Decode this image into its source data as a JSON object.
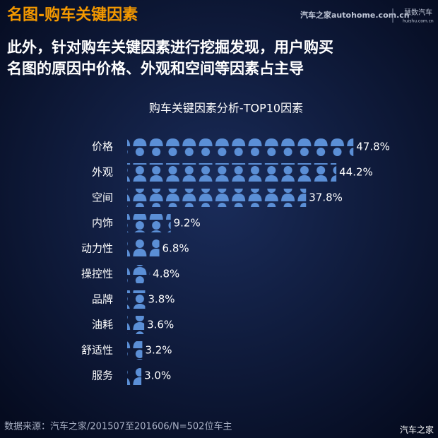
{
  "header": {
    "title": "名图-购车关键因素",
    "logo_autohome": "汽车之家autohome.com.cn",
    "logo_huishu": "慧数汽车",
    "logo_huishu_url": "huishu.com.cn",
    "subtitle_lines": [
      "此外，针对购车关键因素进行挖掘发现，用户购买",
      "名图的原因中价格、外观和空间等因素占主导"
    ]
  },
  "chart_data": {
    "type": "pictograph",
    "title": "购车关键因素分析-TOP10因素",
    "categories": [
      "价格",
      "外观",
      "空间",
      "内饰",
      "动力性",
      "操控性",
      "品牌",
      "油耗",
      "舒适性",
      "服务"
    ],
    "values": [
      47.8,
      44.2,
      37.8,
      9.2,
      6.8,
      4.8,
      3.8,
      3.6,
      3.2,
      3.0
    ],
    "value_labels": [
      "47.8%",
      "44.2%",
      "37.8%",
      "9.2%",
      "6.8%",
      "4.8%",
      "3.8%",
      "3.6%",
      "3.2%",
      "3.0%"
    ],
    "color": "#5b8fd6"
  },
  "footer": {
    "source": "数据来源：汽车之家/201507至201606/N=502位车主",
    "watermark": "汽车之家"
  }
}
